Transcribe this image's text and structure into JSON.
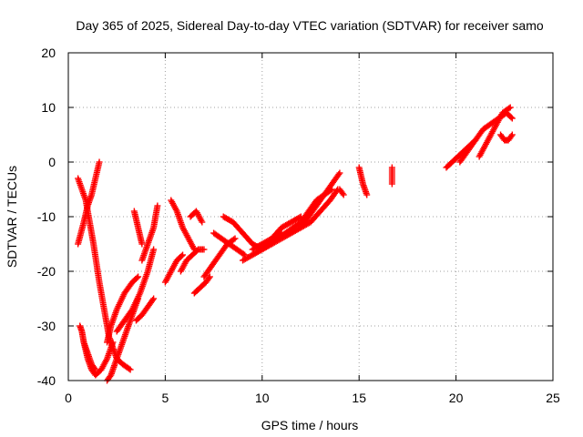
{
  "chart_data": {
    "type": "scatter",
    "title": "Day 365 of 2025, Sidereal Day-to-day VTEC variation (SDTVAR) for receiver samo",
    "xlabel": "GPS time / hours",
    "ylabel": "SDTVAR / TECUs",
    "xlim": [
      0,
      25
    ],
    "ylim": [
      -40,
      20
    ],
    "xticks": [
      "0",
      "5",
      "10",
      "15",
      "20",
      "25"
    ],
    "yticks": [
      "-40",
      "-30",
      "-20",
      "-10",
      "0",
      "10",
      "20"
    ],
    "grid": true,
    "marker": "+",
    "color": "#ff0000",
    "segments": [
      {
        "x": [
          0.5,
          0.8,
          1.0,
          1.2,
          1.6
        ],
        "y": [
          -15,
          -11,
          -8,
          -6,
          0
        ]
      },
      {
        "x": [
          0.5,
          0.9,
          1.1,
          1.3,
          1.6,
          1.9,
          2.1,
          2.3,
          2.5,
          2.8,
          3.2
        ],
        "y": [
          -3,
          -7,
          -11,
          -15,
          -22,
          -28,
          -32,
          -34,
          -36,
          -37,
          -38
        ]
      },
      {
        "x": [
          0.8,
          1.0,
          1.2,
          1.4,
          1.7,
          2.0,
          2.3
        ],
        "y": [
          -33,
          -36,
          -38,
          -39,
          -38,
          -36,
          -33
        ]
      },
      {
        "x": [
          0.6,
          0.7,
          0.8,
          1.0,
          1.2,
          1.4
        ],
        "y": [
          -30,
          -31,
          -33,
          -35,
          -37,
          -38
        ]
      },
      {
        "x": [
          2.0,
          2.2,
          2.4,
          2.7,
          3.0,
          3.3,
          3.6
        ],
        "y": [
          -40,
          -39,
          -37,
          -34,
          -31,
          -28,
          -25
        ]
      },
      {
        "x": [
          2.0,
          2.2,
          2.5,
          2.9,
          3.3,
          3.6
        ],
        "y": [
          -33,
          -30,
          -27,
          -24,
          -22,
          -21
        ]
      },
      {
        "x": [
          2.5,
          2.9,
          3.3,
          3.7,
          4.1,
          4.4
        ],
        "y": [
          -31,
          -29,
          -27,
          -24,
          -20,
          -16
        ]
      },
      {
        "x": [
          3.5,
          3.8,
          4.0,
          4.2,
          4.4
        ],
        "y": [
          -29,
          -28,
          -27,
          -26,
          -25
        ]
      },
      {
        "x": [
          3.4,
          3.6,
          3.8
        ],
        "y": [
          -9,
          -12,
          -15
        ]
      },
      {
        "x": [
          3.8,
          4.1,
          4.4,
          4.6
        ],
        "y": [
          -18,
          -15,
          -12,
          -8
        ]
      },
      {
        "x": [
          5.0,
          5.3,
          5.6,
          5.9
        ],
        "y": [
          -22,
          -20,
          -18,
          -17
        ]
      },
      {
        "x": [
          5.3,
          5.6,
          5.9,
          6.2,
          6.5
        ],
        "y": [
          -7,
          -9,
          -12,
          -14,
          -16
        ]
      },
      {
        "x": [
          5.8,
          6.1,
          6.4,
          6.7,
          7.0
        ],
        "y": [
          -20,
          -18,
          -17,
          -16,
          -16
        ]
      },
      {
        "x": [
          6.3,
          6.6,
          6.9
        ],
        "y": [
          -10,
          -9,
          -11
        ]
      },
      {
        "x": [
          6.5,
          6.8,
          7.1,
          7.3
        ],
        "y": [
          -24,
          -23,
          -22,
          -21
        ]
      },
      {
        "x": [
          7.0,
          7.4,
          7.8,
          8.2,
          8.6
        ],
        "y": [
          -21,
          -19,
          -17,
          -15,
          -14
        ]
      },
      {
        "x": [
          7.5,
          7.9,
          8.3,
          8.7,
          9.1
        ],
        "y": [
          -13,
          -14,
          -15,
          -16,
          -17
        ]
      },
      {
        "x": [
          8.0,
          8.5,
          9.0,
          9.5,
          10.0
        ],
        "y": [
          -10,
          -11,
          -13,
          -15,
          -16
        ]
      },
      {
        "x": [
          9.0,
          9.5,
          10.0,
          10.5,
          11.0
        ],
        "y": [
          -18,
          -17,
          -16,
          -15,
          -13
        ]
      },
      {
        "x": [
          9.5,
          10.0,
          10.5,
          11.0,
          11.5,
          12.0
        ],
        "y": [
          -16,
          -15,
          -14,
          -12,
          -11,
          -10
        ]
      },
      {
        "x": [
          10.0,
          10.4,
          10.8,
          11.2,
          11.6,
          12.0,
          12.4,
          12.8,
          13.2,
          13.6
        ],
        "y": [
          -16,
          -15,
          -14,
          -13,
          -12,
          -11,
          -9,
          -7,
          -6,
          -5
        ]
      },
      {
        "x": [
          10.5,
          11.0,
          11.5,
          12.0,
          12.5,
          13.0,
          13.5,
          13.9
        ],
        "y": [
          -15,
          -14,
          -13,
          -12,
          -11,
          -9,
          -7,
          -5
        ]
      },
      {
        "x": [
          12.0,
          12.4,
          12.8,
          13.2,
          13.6,
          14.0
        ],
        "y": [
          -12,
          -10,
          -8,
          -6,
          -4,
          -2
        ]
      },
      {
        "x": [
          14.0,
          14.2
        ],
        "y": [
          -5,
          -6
        ]
      },
      {
        "x": [
          15.0,
          15.2,
          15.4
        ],
        "y": [
          -1,
          -4,
          -6
        ]
      },
      {
        "x": [
          16.7,
          16.7,
          16.7
        ],
        "y": [
          -1,
          -3,
          -4
        ]
      },
      {
        "x": [
          19.5,
          19.8,
          20.1,
          20.4,
          20.7,
          21.0
        ],
        "y": [
          -1,
          0,
          1,
          2,
          3,
          4
        ]
      },
      {
        "x": [
          20.2,
          20.6,
          21.0,
          21.4,
          21.8,
          22.2,
          22.6,
          22.9
        ],
        "y": [
          0,
          2,
          4,
          6,
          7,
          8,
          9,
          8
        ]
      },
      {
        "x": [
          21.2,
          21.5,
          21.8,
          22.1,
          22.4,
          22.8
        ],
        "y": [
          1,
          3,
          5,
          7,
          9,
          10
        ]
      },
      {
        "x": [
          22.3,
          22.5,
          22.7,
          22.9
        ],
        "y": [
          5,
          4,
          4,
          5
        ]
      }
    ]
  }
}
